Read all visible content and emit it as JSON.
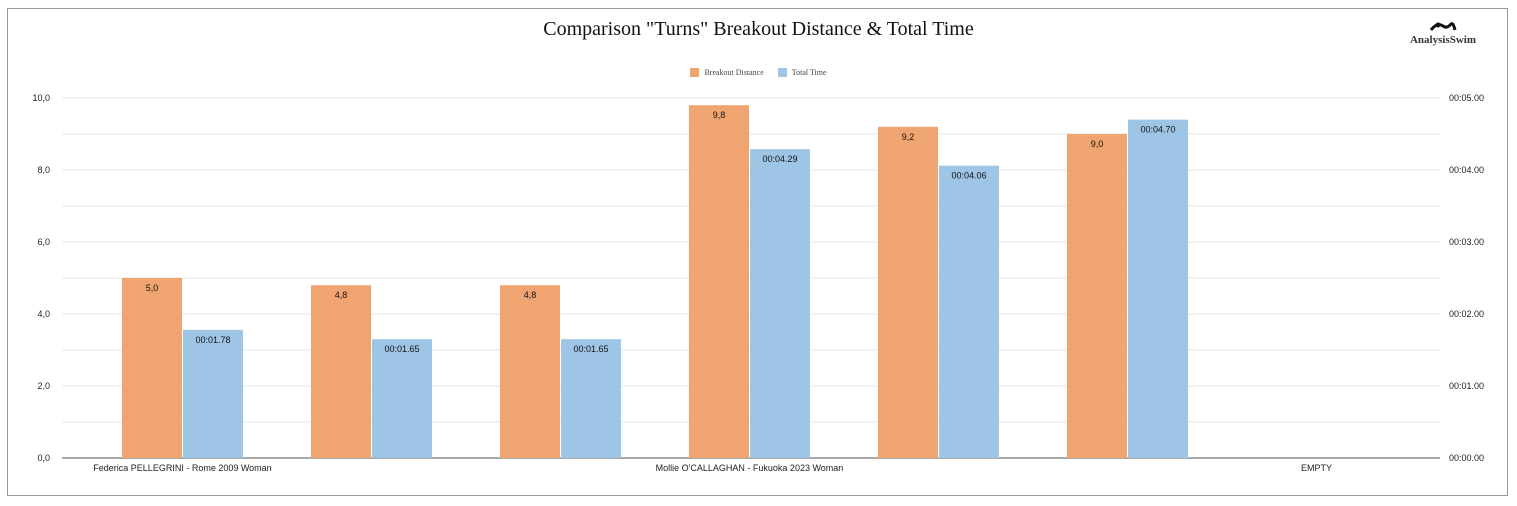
{
  "chart_data": {
    "type": "bar",
    "title": "Comparison \"Turns\" Breakout Distance & Total Time",
    "logo_text": "AnalysisSwim",
    "categories": [
      "Federica PELLEGRINI - Rome 2009 Woman",
      "",
      "",
      "Mollie O'CALLAGHAN - Fukuoka 2023 Woman",
      "",
      "",
      "EMPTY"
    ],
    "series": [
      {
        "name": "Breakout Distance",
        "axis": "left",
        "color": "#f0a471",
        "values": [
          5.0,
          4.8,
          4.8,
          9.8,
          9.2,
          9.0,
          null
        ],
        "labels": [
          "5,0",
          "4,8",
          "4,8",
          "9,8",
          "9,2",
          "9,0",
          ""
        ]
      },
      {
        "name": "Total Time",
        "axis": "right",
        "color": "#9fc5e6",
        "values": [
          1.78,
          1.65,
          1.65,
          4.29,
          4.06,
          4.7,
          null
        ],
        "labels": [
          "00:01.78",
          "00:01.65",
          "00:01.65",
          "00:04.29",
          "00:04.06",
          "00:04.70",
          ""
        ]
      }
    ],
    "left_axis": {
      "range": [
        0,
        10
      ],
      "ticks": [
        "0,0",
        "2,0",
        "4,0",
        "6,0",
        "8,0",
        "10,0"
      ]
    },
    "right_axis": {
      "range": [
        0,
        5
      ],
      "ticks": [
        "00:00.00",
        "00:01.00",
        "00:02.00",
        "00:03.00",
        "00:04.00",
        "00:05.00"
      ]
    },
    "grid": true,
    "legend": "top-center"
  }
}
